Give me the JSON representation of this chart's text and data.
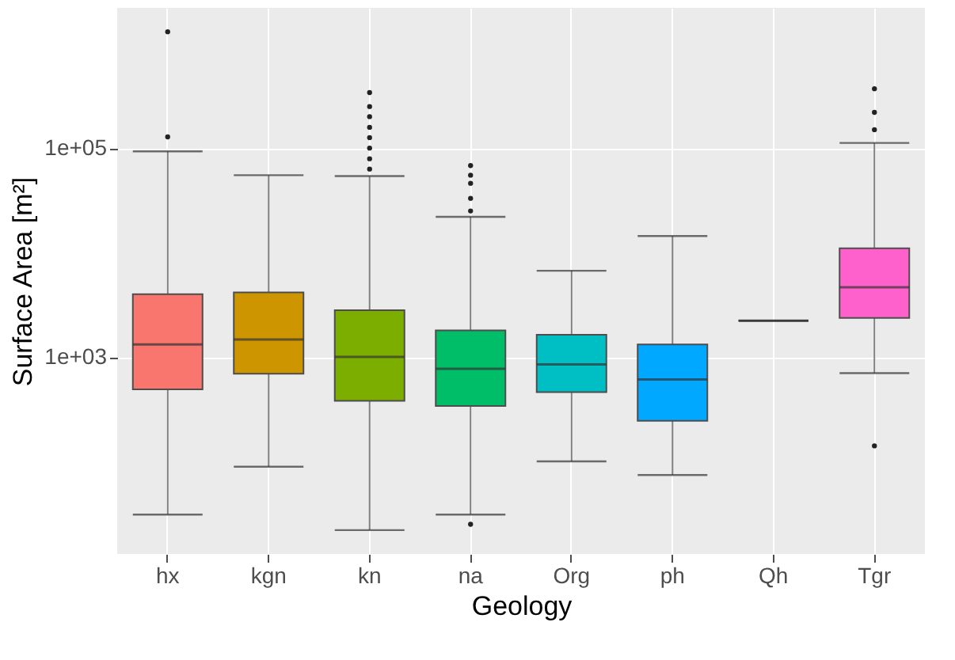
{
  "chart_data": {
    "type": "box",
    "xlabel": "Geology",
    "ylabel": "Surface Area [m²]",
    "categories": [
      "hx",
      "kgn",
      "kn",
      "na",
      "Org",
      "ph",
      "Qh",
      "Tgr"
    ],
    "colors": [
      "#f8766d",
      "#cd9600",
      "#7cae00",
      "#00be67",
      "#00bfc4",
      "#00a9ff",
      "#333333",
      "#ff61cc"
    ],
    "boxes": [
      {
        "low": 31,
        "q1": 490,
        "median": 1320,
        "q3": 4000,
        "high": 93000,
        "outliers": [
          128000,
          1300000
        ]
      },
      {
        "low": 89,
        "q1": 690,
        "median": 1470,
        "q3": 4150,
        "high": 55000
      },
      {
        "low": 22,
        "q1": 380,
        "median": 1000,
        "q3": 2800,
        "high": 54000,
        "outliers": [
          63000,
          79000,
          100000,
          126000,
          158000,
          200000,
          250000,
          340000
        ]
      },
      {
        "low": 31,
        "q1": 340,
        "median": 770,
        "q3": 1800,
        "high": 22000,
        "outliers": [
          25,
          25000,
          33000,
          46000,
          55000,
          68000
        ]
      },
      {
        "low": 100,
        "q1": 460,
        "median": 850,
        "q3": 1630,
        "high": 6700
      },
      {
        "low": 74,
        "q1": 245,
        "median": 610,
        "q3": 1320,
        "high": 14400
      },
      {
        "low": 2230,
        "q1": 2230,
        "median": 2230,
        "q3": 2230,
        "high": 2230
      },
      {
        "low": 700,
        "q1": 2370,
        "median": 4650,
        "q3": 11000,
        "high": 112000,
        "outliers": [
          141,
          150000,
          220000,
          370000
        ]
      }
    ],
    "log": true,
    "ylim": [
      13,
      2200000
    ],
    "yticks": [
      {
        "value": 1000,
        "label": "1e+03"
      },
      {
        "value": 100000,
        "label": "1e+05"
      }
    ],
    "grid": true,
    "legend": false
  }
}
